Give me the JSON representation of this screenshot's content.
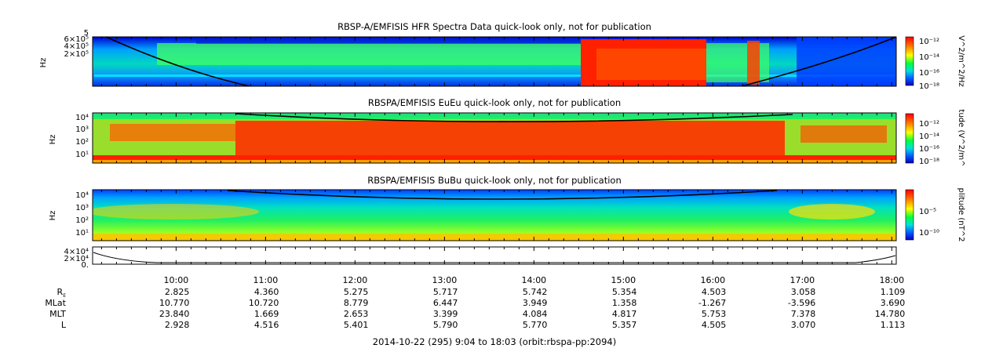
{
  "chart_data": [
    {
      "type": "heatmap",
      "title": "RBSP-A/EMFISIS  HFR Spectra Data quick-look only, not for publication",
      "ylabel": "Hz",
      "ytick_labels": [
        "6×10⁵",
        "4×10⁵",
        "2×10⁵"
      ],
      "ytick_top": "5",
      "colorbar": {
        "label": "V^2/m^2/Hz",
        "ticks": [
          "10⁻¹²",
          "10⁻¹⁴",
          "10⁻¹⁶",
          "10⁻¹⁸"
        ]
      }
    },
    {
      "type": "heatmap",
      "title": "RBSPA/EMFISIS  EuEu quick-look only, not for publication",
      "ylabel": "Hz",
      "ytick_labels": [
        "10⁴",
        "10³",
        "10²",
        "10¹"
      ],
      "colorbar": {
        "label": "tude (V^2/m^",
        "ticks": [
          "10⁻¹²",
          "10⁻¹⁴",
          "10⁻¹⁶",
          "10⁻¹⁸"
        ]
      }
    },
    {
      "type": "heatmap",
      "title": "RBSPA/EMFISIS  BuBu quick-look only, not for publication",
      "ylabel": "Hz",
      "ytick_labels": [
        "10⁴",
        "10³",
        "10²",
        "10¹"
      ],
      "colorbar": {
        "label": "plitude (nT^2",
        "ticks": [
          "10⁻⁵",
          "10⁻¹⁰"
        ]
      }
    },
    {
      "type": "line",
      "ytick_labels": [
        "4×10⁴",
        "2×10⁴",
        "0."
      ]
    }
  ],
  "time_axis": {
    "labels": [
      "10:00",
      "11:00",
      "12:00",
      "13:00",
      "14:00",
      "15:00",
      "16:00",
      "17:00",
      "18:00"
    ]
  },
  "ephemeris": {
    "rows": [
      {
        "label": "R",
        "sub": "E",
        "values": [
          "2.825",
          "4.360",
          "5.275",
          "5.717",
          "5.742",
          "5.354",
          "4.503",
          "3.058",
          "1.109"
        ]
      },
      {
        "label": "MLat",
        "sub": "",
        "values": [
          "10.770",
          "10.720",
          "8.779",
          "6.447",
          "3.949",
          "1.358",
          "-1.267",
          "-3.596",
          "3.690"
        ]
      },
      {
        "label": "MLT",
        "sub": "",
        "values": [
          "23.840",
          "1.669",
          "2.653",
          "3.399",
          "4.084",
          "4.817",
          "5.753",
          "7.378",
          "14.780"
        ]
      },
      {
        "label": "L",
        "sub": "",
        "values": [
          "2.928",
          "4.516",
          "5.401",
          "5.790",
          "5.770",
          "5.357",
          "4.505",
          "3.070",
          "1.113"
        ]
      }
    ]
  },
  "footer": "2014-10-22 (295) 9:04 to 18:03 (orbit:rbspa-pp:2094)"
}
